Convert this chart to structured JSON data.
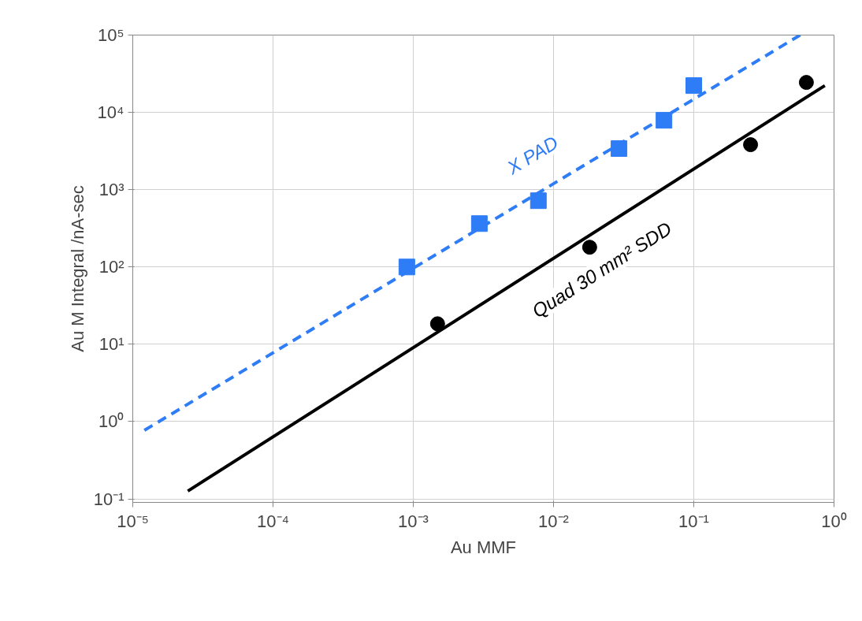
{
  "chart_data": {
    "type": "scatter",
    "xlabel": "Au MMF",
    "ylabel": "Au M Integral /nA-sec",
    "log": "xy",
    "grid": true,
    "xlim": [
      1e-05,
      1
    ],
    "ylim": [
      0.09,
      100000
    ],
    "xticks": [
      {
        "value": 1e-05,
        "label": "10⁻⁵"
      },
      {
        "value": 0.0001,
        "label": "10⁻⁴"
      },
      {
        "value": 0.001,
        "label": "10⁻³"
      },
      {
        "value": 0.01,
        "label": "10⁻²"
      },
      {
        "value": 0.1,
        "label": "10⁻¹"
      },
      {
        "value": 1,
        "label": "10⁰"
      }
    ],
    "yticks": [
      {
        "value": 0.1,
        "label": "10⁻¹"
      },
      {
        "value": 1,
        "label": "10⁰"
      },
      {
        "value": 10,
        "label": "10¹"
      },
      {
        "value": 100,
        "label": "10²"
      },
      {
        "value": 1000,
        "label": "10³"
      },
      {
        "value": 10000,
        "label": "10⁴"
      },
      {
        "value": 100000,
        "label": "10⁵"
      }
    ],
    "series": [
      {
        "marker": "square",
        "color": "#2f7df6",
        "x": [
          0.0009,
          0.00296,
          0.0078,
          0.0293,
          0.0613,
          0.1
        ],
        "values": [
          100,
          364,
          720,
          3400,
          7900,
          22200
        ]
      },
      {
        "type": "line",
        "name": "X PAD",
        "line_style": "dashed",
        "color": "#2f7df6",
        "x": [
          1.21e-05,
          0.573
        ],
        "values": [
          0.77,
          100000
        ]
      },
      {
        "marker": "circle",
        "color": "#000000",
        "x": [
          0.00149,
          0.0181,
          0.254,
          0.635
        ],
        "values": [
          18.4,
          180,
          3820,
          24400
        ]
      },
      {
        "type": "line",
        "name": "Quad 30 mm² SDD",
        "line_style": "solid",
        "color": "#000000",
        "x": [
          2.47e-05,
          0.86
        ],
        "values": [
          0.126,
          22200
        ]
      }
    ]
  }
}
